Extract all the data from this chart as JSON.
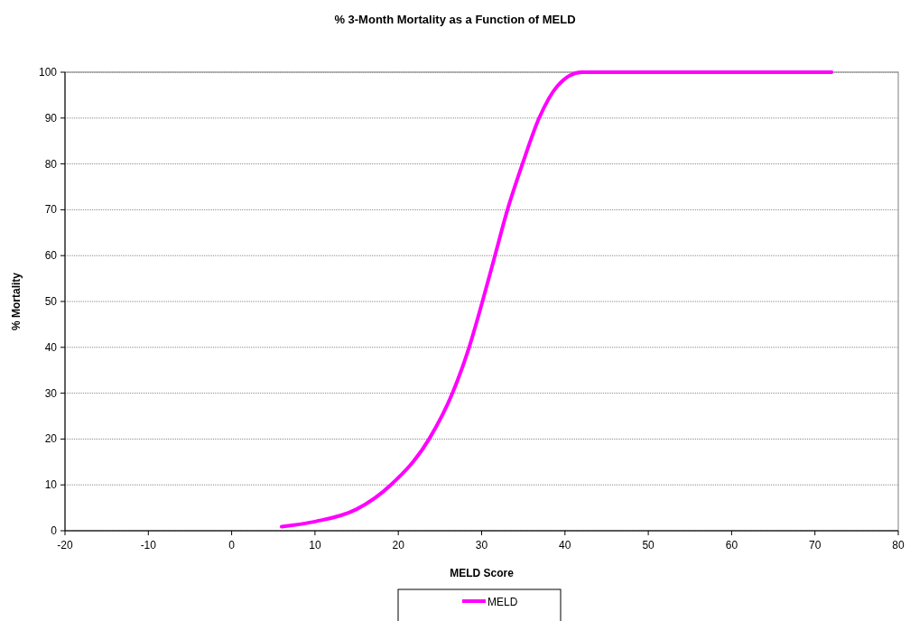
{
  "chart_data": {
    "type": "line",
    "title": "% 3-Month Mortality as a Function of MELD",
    "xlabel": "MELD Score",
    "ylabel": "% Mortality",
    "xlim": [
      -20,
      80
    ],
    "xticks": [
      -20,
      -10,
      0,
      10,
      20,
      30,
      40,
      50,
      60,
      70,
      80
    ],
    "ylim": [
      0,
      100
    ],
    "yticks": [
      0,
      10,
      20,
      30,
      40,
      50,
      60,
      70,
      80,
      90,
      100
    ],
    "grid": "y",
    "legend": "bottom",
    "marker": "none",
    "line_style": "solid",
    "series": [
      {
        "name": "MELD",
        "color": "#ff00ff",
        "x": [
          6,
          10,
          15,
          19.1,
          23.7,
          26.5,
          28.5,
          30.1,
          31.6,
          33.1,
          34.9,
          36.9,
          39.1,
          42,
          50,
          60,
          72
        ],
        "values": [
          0.9,
          2,
          4.7,
          10,
          20,
          30,
          40,
          50,
          60,
          70,
          80,
          90,
          97,
          100,
          100,
          100,
          100
        ]
      }
    ]
  }
}
